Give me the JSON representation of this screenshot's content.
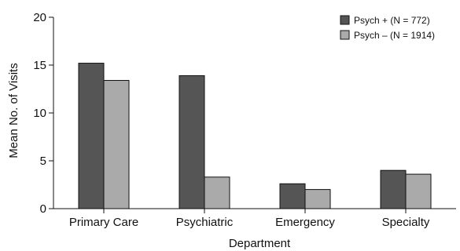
{
  "chart_data": {
    "type": "bar",
    "xlabel": "Department",
    "ylabel": "Mean No. of Visits",
    "categories": [
      "Primary Care",
      "Psychiatric",
      "Emergency",
      "Specialty"
    ],
    "yticks": [
      0,
      5,
      10,
      15,
      20
    ],
    "ylim": [
      0,
      20
    ],
    "series": [
      {
        "name": "Psych + (N = 772)",
        "color": "#555555",
        "values": [
          15.2,
          13.9,
          2.6,
          4.0
        ]
      },
      {
        "name": "Psych – (N = 1914)",
        "color": "#aaaaaa",
        "values": [
          13.4,
          3.3,
          2.0,
          3.6
        ]
      }
    ],
    "legend_position": "top-right",
    "grid": false
  }
}
